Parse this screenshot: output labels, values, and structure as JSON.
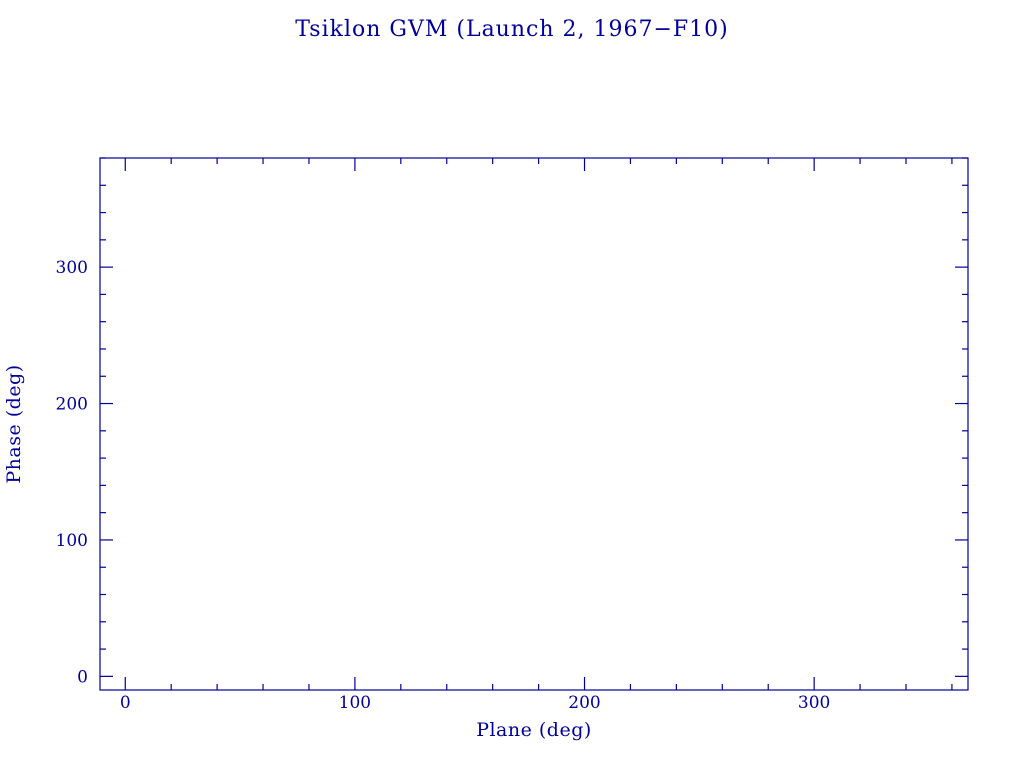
{
  "colors": {
    "accent": "#000099",
    "background": "#ffffff"
  },
  "chart_data": {
    "type": "scatter",
    "title": "Tsiklon GVM (Launch 2, 1967−F10)",
    "xlabel": "Plane (deg)",
    "ylabel": "Phase (deg)",
    "xlim": [
      -11,
      367
    ],
    "ylim": [
      -10,
      380
    ],
    "xticks": [
      0,
      100,
      200,
      300
    ],
    "xtick_labels": [
      "0",
      "100",
      "200",
      "300"
    ],
    "yticks": [
      0,
      100,
      200,
      300
    ],
    "ytick_labels": [
      "0",
      "100",
      "200",
      "300"
    ],
    "x_minor_step": 20,
    "y_minor_step": 20,
    "grid": false,
    "legend": null,
    "series": []
  }
}
